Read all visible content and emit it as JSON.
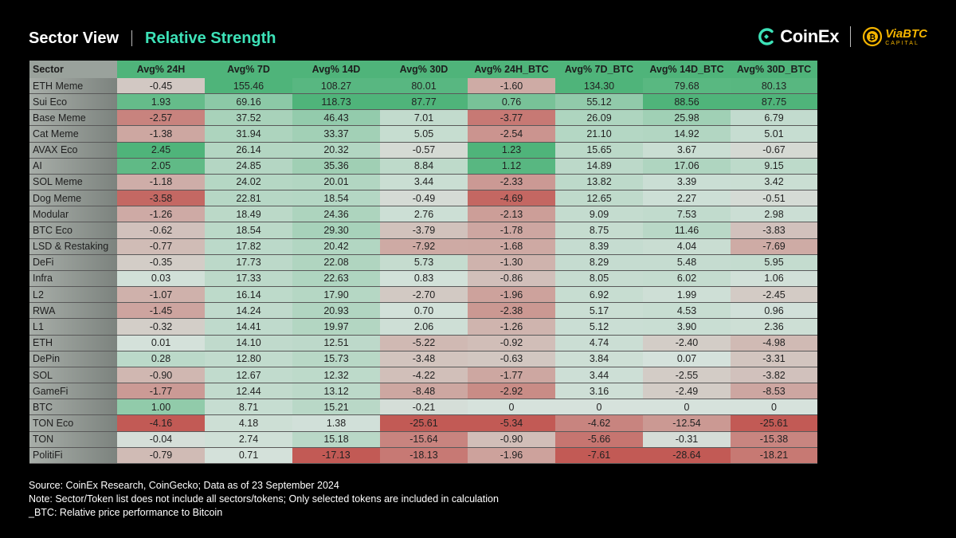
{
  "header": {
    "title": "Sector View",
    "subtitle": "Relative Strength"
  },
  "logos": {
    "coinex": "CoinEx",
    "viabtc": "ViaBTC",
    "viabtc_sub": "CAPITAL"
  },
  "colors": {
    "accent": "#3de2b8",
    "positive": "#4fb47a",
    "negative": "#c25a55",
    "neutral": "#d6e2dc"
  },
  "chart_data": {
    "type": "table",
    "columns": [
      "Sector",
      "Avg% 24H",
      "Avg% 7D",
      "Avg% 14D",
      "Avg% 30D",
      "Avg% 24H_BTC",
      "Avg% 7D_BTC",
      "Avg% 14D_BTC",
      "Avg% 30D_BTC"
    ],
    "rows": [
      [
        "ETH Meme",
        "-0.45",
        "155.46",
        "108.27",
        "80.01",
        "-1.60",
        "134.30",
        "79.68",
        "80.13"
      ],
      [
        "Sui Eco",
        "1.93",
        "69.16",
        "118.73",
        "87.77",
        "0.76",
        "55.12",
        "88.56",
        "87.75"
      ],
      [
        "Base Meme",
        "-2.57",
        "37.52",
        "46.43",
        "7.01",
        "-3.77",
        "26.09",
        "25.98",
        "6.79"
      ],
      [
        "Cat Meme",
        "-1.38",
        "31.94",
        "33.37",
        "5.05",
        "-2.54",
        "21.10",
        "14.92",
        "5.01"
      ],
      [
        "AVAX Eco",
        "2.45",
        "26.14",
        "20.32",
        "-0.57",
        "1.23",
        "15.65",
        "3.67",
        "-0.67"
      ],
      [
        "AI",
        "2.05",
        "24.85",
        "35.36",
        "8.84",
        "1.12",
        "14.89",
        "17.06",
        "9.15"
      ],
      [
        "SOL Meme",
        "-1.18",
        "24.02",
        "20.01",
        "3.44",
        "-2.33",
        "13.82",
        "3.39",
        "3.42"
      ],
      [
        "Dog Meme",
        "-3.58",
        "22.81",
        "18.54",
        "-0.49",
        "-4.69",
        "12.65",
        "2.27",
        "-0.51"
      ],
      [
        "Modular",
        "-1.26",
        "18.49",
        "24.36",
        "2.76",
        "-2.13",
        "9.09",
        "7.53",
        "2.98"
      ],
      [
        "BTC Eco",
        "-0.62",
        "18.54",
        "29.30",
        "-3.79",
        "-1.78",
        "8.75",
        "11.46",
        "-3.83"
      ],
      [
        "LSD & Restaking",
        "-0.77",
        "17.82",
        "20.42",
        "-7.92",
        "-1.68",
        "8.39",
        "4.04",
        "-7.69"
      ],
      [
        "DeFi",
        "-0.35",
        "17.73",
        "22.08",
        "5.73",
        "-1.30",
        "8.29",
        "5.48",
        "5.95"
      ],
      [
        "Infra",
        "0.03",
        "17.33",
        "22.63",
        "0.83",
        "-0.86",
        "8.05",
        "6.02",
        "1.06"
      ],
      [
        "L2",
        "-1.07",
        "16.14",
        "17.90",
        "-2.70",
        "-1.96",
        "6.92",
        "1.99",
        "-2.45"
      ],
      [
        "RWA",
        "-1.45",
        "14.24",
        "20.93",
        "0.70",
        "-2.38",
        "5.17",
        "4.53",
        "0.96"
      ],
      [
        "L1",
        "-0.32",
        "14.41",
        "19.97",
        "2.06",
        "-1.26",
        "5.12",
        "3.90",
        "2.36"
      ],
      [
        "ETH",
        "0.01",
        "14.10",
        "12.51",
        "-5.22",
        "-0.92",
        "4.74",
        "-2.40",
        "-4.98"
      ],
      [
        "DePin",
        "0.28",
        "12.80",
        "15.73",
        "-3.48",
        "-0.63",
        "3.84",
        "0.07",
        "-3.31"
      ],
      [
        "SOL",
        "-0.90",
        "12.67",
        "12.32",
        "-4.22",
        "-1.77",
        "3.44",
        "-2.55",
        "-3.82"
      ],
      [
        "GameFi",
        "-1.77",
        "12.44",
        "13.12",
        "-8.48",
        "-2.92",
        "3.16",
        "-2.49",
        "-8.53"
      ],
      [
        "BTC",
        "1.00",
        "8.71",
        "15.21",
        "-0.21",
        "0",
        "0",
        "0",
        "0"
      ],
      [
        "TON Eco",
        "-4.16",
        "4.18",
        "1.38",
        "-25.61",
        "-5.34",
        "-4.62",
        "-12.54",
        "-25.61"
      ],
      [
        "TON",
        "-0.04",
        "2.74",
        "15.18",
        "-15.64",
        "-0.90",
        "-5.66",
        "-0.31",
        "-15.38"
      ],
      [
        "PolitiFi",
        "-0.79",
        "0.71",
        "-17.13",
        "-18.13",
        "-1.96",
        "-7.61",
        "-28.64",
        "-18.21"
      ]
    ]
  },
  "footer": {
    "source": "Source: CoinEx Research, CoinGecko; Data as of 23 September 2024",
    "note": "Note: Sector/Token list does not include all sectors/tokens; Only selected tokens are included in calculation",
    "btc": "_BTC: Relative price performance to Bitcoin"
  }
}
